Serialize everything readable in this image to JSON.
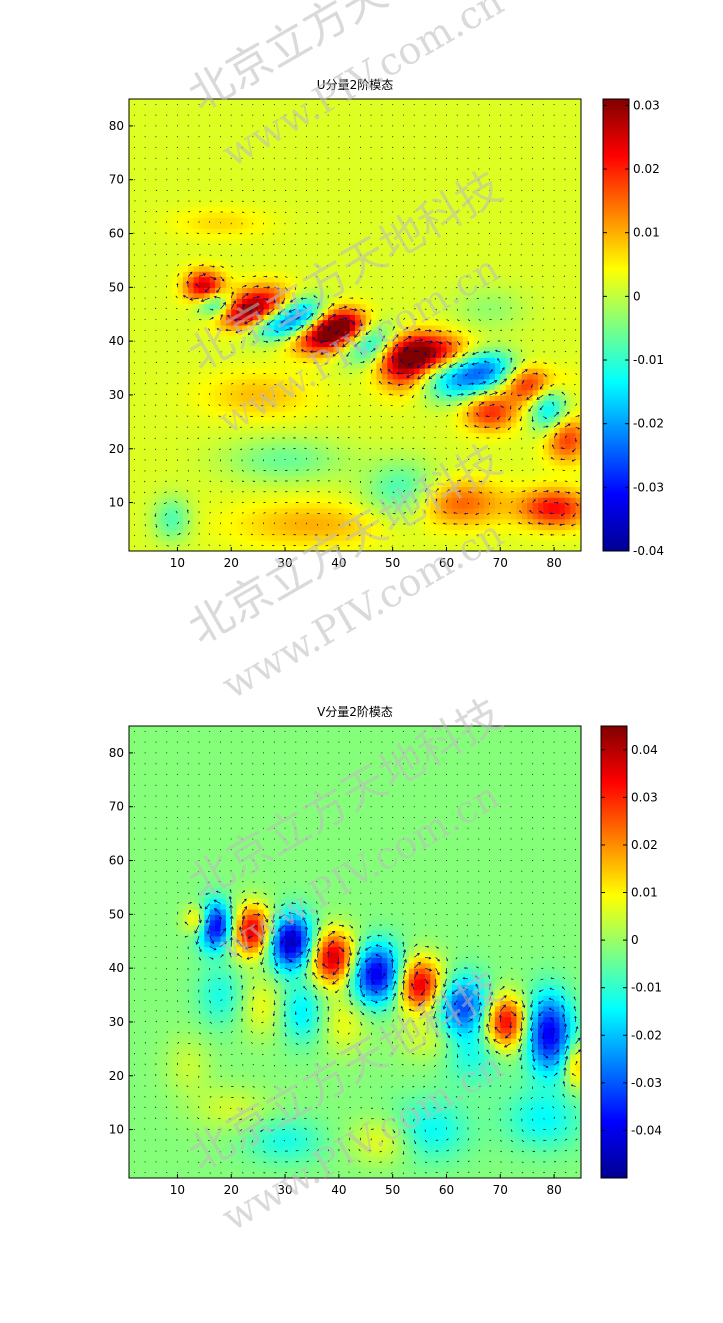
{
  "watermark": {
    "company": "北京立方天地科技",
    "website": "www.PIV.com.cn",
    "color": "#bbbbbb"
  },
  "chart_data": [
    {
      "type": "heatmap",
      "title": "U分量2阶模态",
      "xlabel": "",
      "ylabel": "",
      "xlim": [
        1,
        85
      ],
      "ylim": [
        1,
        85
      ],
      "xticks": [
        10,
        20,
        30,
        40,
        50,
        60,
        70,
        80
      ],
      "yticks": [
        10,
        20,
        30,
        40,
        50,
        60,
        70,
        80
      ],
      "colormap": "jet",
      "colorbar": {
        "range": [
          -0.04,
          0.031
        ],
        "ticks": [
          0.03,
          0.02,
          0.01,
          0,
          -0.01,
          -0.02,
          -0.03,
          -0.04
        ],
        "tick_labels": [
          "0.03",
          "0.02",
          "0.01",
          "0",
          "-0.01",
          "-0.02",
          "-0.03",
          "-0.04"
        ]
      },
      "overlay": "velocity-vector-field",
      "background_value": 0.002,
      "features": [
        {
          "x": 15,
          "y": 50,
          "amp": 0.026,
          "sx": 2.5,
          "sy": 2.2
        },
        {
          "x": 17,
          "y": 47,
          "amp": -0.022,
          "sx": 2.5,
          "sy": 1.8
        },
        {
          "x": 22,
          "y": 45,
          "amp": 0.024,
          "sx": 3.5,
          "sy": 2.2
        },
        {
          "x": 27,
          "y": 47,
          "amp": 0.022,
          "sx": 4,
          "sy": 2.5
        },
        {
          "x": 28,
          "y": 43,
          "amp": -0.022,
          "sx": 4,
          "sy": 2.2
        },
        {
          "x": 33,
          "y": 45,
          "amp": -0.026,
          "sx": 3.5,
          "sy": 2.5
        },
        {
          "x": 37,
          "y": 41,
          "amp": 0.03,
          "sx": 4.5,
          "sy": 2.5
        },
        {
          "x": 41,
          "y": 43,
          "amp": 0.028,
          "sx": 3.5,
          "sy": 2.3
        },
        {
          "x": 45,
          "y": 40,
          "amp": -0.024,
          "sx": 4.5,
          "sy": 2.8
        },
        {
          "x": 52,
          "y": 36,
          "amp": 0.024,
          "sx": 3.5,
          "sy": 3.5
        },
        {
          "x": 57,
          "y": 38,
          "amp": 0.025,
          "sx": 5,
          "sy": 2.5
        },
        {
          "x": 62,
          "y": 33,
          "amp": -0.02,
          "sx": 5,
          "sy": 3
        },
        {
          "x": 68,
          "y": 35,
          "amp": -0.018,
          "sx": 4,
          "sy": 2.5
        },
        {
          "x": 68,
          "y": 27,
          "amp": 0.018,
          "sx": 3.5,
          "sy": 2.5
        },
        {
          "x": 76,
          "y": 32,
          "amp": 0.022,
          "sx": 4,
          "sy": 2.5
        },
        {
          "x": 79,
          "y": 28,
          "amp": -0.02,
          "sx": 2.5,
          "sy": 4
        },
        {
          "x": 82,
          "y": 22,
          "amp": 0.018,
          "sx": 3,
          "sy": 3
        },
        {
          "x": 80,
          "y": 9,
          "amp": 0.02,
          "sx": 4.5,
          "sy": 2.5
        },
        {
          "x": 62,
          "y": 10,
          "amp": 0.014,
          "sx": 6,
          "sy": 3
        },
        {
          "x": 52,
          "y": 12,
          "amp": -0.012,
          "sx": 5,
          "sy": 4
        },
        {
          "x": 30,
          "y": 18,
          "amp": -0.008,
          "sx": 8,
          "sy": 3
        },
        {
          "x": 25,
          "y": 30,
          "amp": 0.007,
          "sx": 7,
          "sy": 3
        },
        {
          "x": 35,
          "y": 6,
          "amp": 0.008,
          "sx": 10,
          "sy": 3
        },
        {
          "x": 9,
          "y": 7,
          "amp": -0.01,
          "sx": 2.5,
          "sy": 3
        },
        {
          "x": 18,
          "y": 62,
          "amp": 0.005,
          "sx": 6,
          "sy": 2
        },
        {
          "x": 68,
          "y": 46,
          "amp": -0.005,
          "sx": 5,
          "sy": 3
        }
      ]
    },
    {
      "type": "heatmap",
      "title": "V分量2阶模态",
      "xlabel": "",
      "ylabel": "",
      "xlim": [
        1,
        85
      ],
      "ylim": [
        1,
        85
      ],
      "xticks": [
        10,
        20,
        30,
        40,
        50,
        60,
        70,
        80
      ],
      "yticks": [
        10,
        20,
        30,
        40,
        50,
        60,
        70,
        80
      ],
      "colormap": "jet",
      "colorbar": {
        "range": [
          -0.05,
          0.045
        ],
        "ticks": [
          0.04,
          0.03,
          0.02,
          0.01,
          0,
          -0.01,
          -0.02,
          -0.03,
          -0.04
        ],
        "tick_labels": [
          "0.04",
          "0.03",
          "0.02",
          "0.01",
          "0",
          "-0.01",
          "-0.02",
          "-0.03",
          "-0.04"
        ]
      },
      "overlay": "velocity-vector-field",
      "background_value": -0.002,
      "features": [
        {
          "x": 14,
          "y": 49,
          "amp": 0.022,
          "sx": 1.8,
          "sy": 2
        },
        {
          "x": 17,
          "y": 48,
          "amp": -0.042,
          "sx": 2.3,
          "sy": 3
        },
        {
          "x": 24,
          "y": 47,
          "amp": 0.04,
          "sx": 2.8,
          "sy": 3.3
        },
        {
          "x": 31,
          "y": 45,
          "amp": -0.045,
          "sx": 3,
          "sy": 3.5
        },
        {
          "x": 39,
          "y": 42,
          "amp": 0.042,
          "sx": 3,
          "sy": 3.5
        },
        {
          "x": 47,
          "y": 39,
          "amp": -0.04,
          "sx": 3.5,
          "sy": 3.8
        },
        {
          "x": 55,
          "y": 37,
          "amp": 0.04,
          "sx": 3,
          "sy": 3.5
        },
        {
          "x": 63,
          "y": 33,
          "amp": -0.03,
          "sx": 3.5,
          "sy": 3.8
        },
        {
          "x": 71,
          "y": 30,
          "amp": 0.038,
          "sx": 2.8,
          "sy": 3.5
        },
        {
          "x": 79,
          "y": 28,
          "amp": -0.038,
          "sx": 3,
          "sy": 5
        },
        {
          "x": 18,
          "y": 35,
          "amp": -0.01,
          "sx": 3,
          "sy": 4
        },
        {
          "x": 26,
          "y": 33,
          "amp": 0.01,
          "sx": 3,
          "sy": 4
        },
        {
          "x": 33,
          "y": 32,
          "amp": -0.014,
          "sx": 3,
          "sy": 4
        },
        {
          "x": 41,
          "y": 30,
          "amp": 0.01,
          "sx": 3,
          "sy": 4
        },
        {
          "x": 57,
          "y": 27,
          "amp": 0.008,
          "sx": 4,
          "sy": 3
        },
        {
          "x": 65,
          "y": 24,
          "amp": -0.01,
          "sx": 4,
          "sy": 4
        },
        {
          "x": 84,
          "y": 22,
          "amp": 0.018,
          "sx": 1.5,
          "sy": 3
        },
        {
          "x": 78,
          "y": 12,
          "amp": -0.012,
          "sx": 5,
          "sy": 4
        },
        {
          "x": 57,
          "y": 10,
          "amp": -0.012,
          "sx": 5,
          "sy": 4
        },
        {
          "x": 48,
          "y": 8,
          "amp": 0.01,
          "sx": 4,
          "sy": 3
        },
        {
          "x": 30,
          "y": 8,
          "amp": -0.01,
          "sx": 5,
          "sy": 3
        },
        {
          "x": 20,
          "y": 14,
          "amp": 0.007,
          "sx": 5,
          "sy": 3
        },
        {
          "x": 12,
          "y": 22,
          "amp": 0.006,
          "sx": 3,
          "sy": 4
        }
      ]
    }
  ]
}
